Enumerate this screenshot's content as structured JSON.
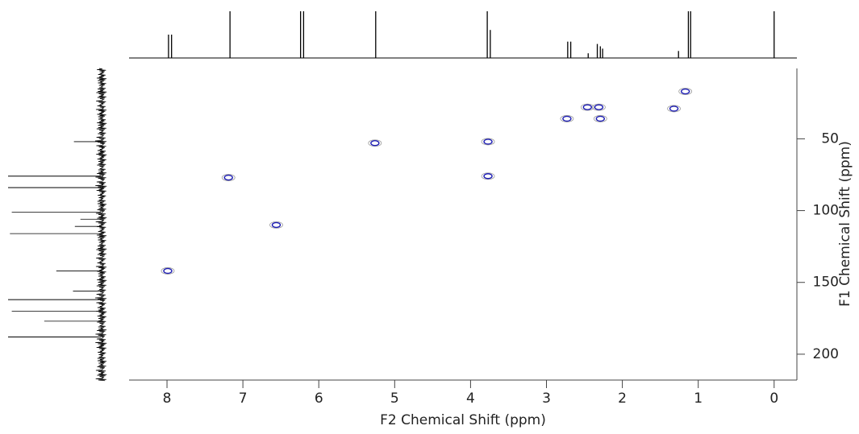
{
  "chart_data": {
    "type": "scatter",
    "xlabel": "F2 Chemical Shift (ppm)",
    "ylabel": "F1 Chemical Shift (ppm)",
    "xlim": [
      8.5,
      -0.3
    ],
    "ylim": [
      1,
      218
    ],
    "xticks": [
      8,
      7,
      6,
      5,
      4,
      3,
      2,
      1,
      0
    ],
    "yticks": [
      50,
      100,
      150,
      200
    ],
    "series": [
      {
        "color": "#1f1fb4",
        "x": [
          1.17,
          2.46,
          2.31,
          2.73,
          2.29,
          1.32,
          5.26,
          3.77,
          7.19,
          3.77,
          6.56,
          7.99
        ],
        "values": [
          17,
          28,
          28,
          36,
          36,
          29,
          53,
          52,
          77,
          76,
          110,
          142
        ]
      }
    ],
    "top_projection": {
      "color": "#000000",
      "x": [
        7.98,
        7.94,
        7.17,
        6.24,
        6.2,
        5.25,
        3.78,
        3.74,
        2.72,
        2.68,
        2.33,
        2.29,
        2.26,
        2.45,
        1.26,
        1.13,
        1.1,
        0.0
      ],
      "values": [
        50,
        50,
        100,
        100,
        100,
        100,
        100,
        60,
        35,
        35,
        30,
        25,
        20,
        10,
        15,
        100,
        100,
        100
      ]
    },
    "left_projection": {
      "color": "#000000",
      "y": [
        52,
        76,
        84,
        101,
        106,
        111,
        116,
        142,
        156,
        162,
        170,
        177,
        188
      ],
      "values": [
        29,
        100,
        100,
        96,
        22,
        28,
        98,
        48,
        30,
        100,
        96,
        61,
        100
      ]
    }
  }
}
